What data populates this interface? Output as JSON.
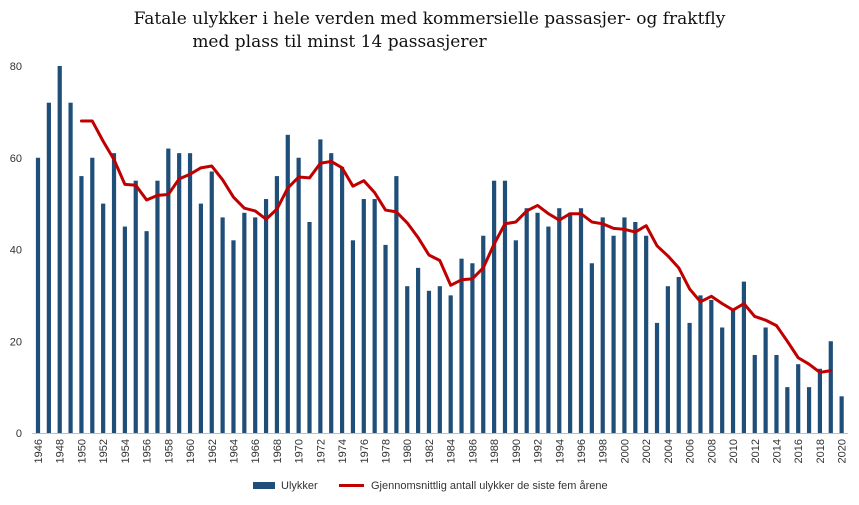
{
  "chart_data": {
    "type": "bar+line",
    "title_line1": "Fatale ulykker i hele verden med kommersielle passasjer- og fraktfly",
    "title_line2": "med plass til minst 14 passasjerer",
    "ylim": [
      0,
      80
    ],
    "yticks": [
      "0",
      "20",
      "40",
      "60",
      "80"
    ],
    "xtick_labels": [
      "1946",
      "1948",
      "1950",
      "1952",
      "1954",
      "1956",
      "1958",
      "1960",
      "1962",
      "1964",
      "1966",
      "1968",
      "1970",
      "1972",
      "1974",
      "1976",
      "1978",
      "1980",
      "1982",
      "1984",
      "1986",
      "1988",
      "1990",
      "1992",
      "1994",
      "1996",
      "1998",
      "2000",
      "2002",
      "2004",
      "2006",
      "2008",
      "2010",
      "2012",
      "2014",
      "2016",
      "2018",
      "2020"
    ],
    "years": [
      1946,
      1947,
      1948,
      1949,
      1950,
      1951,
      1952,
      1953,
      1954,
      1955,
      1956,
      1957,
      1958,
      1959,
      1960,
      1961,
      1962,
      1963,
      1964,
      1965,
      1966,
      1967,
      1968,
      1969,
      1970,
      1971,
      1972,
      1973,
      1974,
      1975,
      1976,
      1977,
      1978,
      1979,
      1980,
      1981,
      1982,
      1983,
      1984,
      1985,
      1986,
      1987,
      1988,
      1989,
      1990,
      1991,
      1992,
      1993,
      1994,
      1995,
      1996,
      1997,
      1998,
      1999,
      2000,
      2001,
      2002,
      2003,
      2004,
      2005,
      2006,
      2007,
      2008,
      2009,
      2010,
      2011,
      2012,
      2013,
      2014,
      2015,
      2016,
      2017,
      2018,
      2019,
      2020
    ],
    "series": [
      {
        "name": "Ulykker",
        "kind": "bar",
        "color": "#1f4e79",
        "values": [
          60,
          72,
          80,
          72,
          56,
          60,
          50,
          61,
          45,
          55,
          44,
          55,
          62,
          61,
          61,
          50,
          57,
          47,
          42,
          48,
          47,
          51,
          56,
          65,
          60,
          46,
          64,
          61,
          58,
          42,
          51,
          51,
          41,
          56,
          32,
          36,
          31,
          32,
          30,
          38,
          37,
          43,
          55,
          55,
          42,
          49,
          48,
          45,
          49,
          48,
          49,
          37,
          47,
          43,
          47,
          46,
          43,
          24,
          32,
          34,
          24,
          30,
          29,
          23,
          27,
          33,
          17,
          23,
          17,
          10,
          15,
          10,
          14,
          20,
          8
        ]
      },
      {
        "name": "Gjennomsnittlig antall ulykker de siste fem årene",
        "kind": "line",
        "color": "#c00000",
        "start_year": 1950,
        "values": [
          68,
          68,
          63.6,
          59.6,
          54.2,
          54,
          50.8,
          51.8,
          52,
          55.4,
          56.4,
          57.8,
          58.2,
          55.2,
          51.4,
          49,
          48.4,
          46.6,
          48.8,
          53.4,
          55.8,
          55.6,
          58.8,
          59.2,
          57.8,
          53.8,
          55,
          52.4,
          48.6,
          48.2,
          45.8,
          42.6,
          38.8,
          37.6,
          32.2,
          33.4,
          33.6,
          36,
          41.2,
          45.6,
          46,
          48.4,
          49.6,
          47.8,
          46.4,
          47.8,
          47.8,
          46,
          45.6,
          44.6,
          44.4,
          43.8,
          45.2,
          40.8,
          38.6,
          36,
          31.4,
          28.6,
          29.8,
          28.2,
          26.8,
          28.2,
          25.4,
          24.6,
          23.4,
          20,
          16.4,
          15,
          13.2,
          13.6
        ]
      }
    ],
    "legend": {
      "position": "bottom-center",
      "bar_label": "Ulykker",
      "line_label": "Gjennomsnittlig antall ulykker de siste fem årene"
    },
    "grid": false
  }
}
